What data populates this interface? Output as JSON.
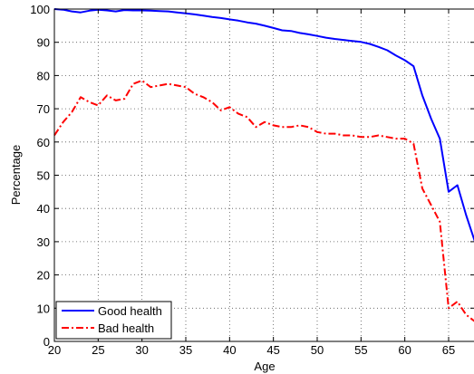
{
  "chart_data": {
    "type": "line",
    "title": "",
    "xlabel": "Age",
    "ylabel": "Percentage",
    "xlim": [
      20,
      68
    ],
    "ylim": [
      0,
      100
    ],
    "xticks": [
      20,
      25,
      30,
      35,
      40,
      45,
      50,
      55,
      60,
      65
    ],
    "yticks": [
      0,
      10,
      20,
      30,
      40,
      50,
      60,
      70,
      80,
      90,
      100
    ],
    "grid": true,
    "grid_style": "dotted",
    "legend_position": "bottom-left",
    "series": [
      {
        "name": "Good health",
        "color": "#0000ff",
        "style": "solid",
        "x": [
          20,
          21,
          22,
          23,
          24,
          25,
          26,
          27,
          28,
          29,
          30,
          31,
          32,
          33,
          34,
          35,
          36,
          37,
          38,
          39,
          40,
          41,
          42,
          43,
          44,
          45,
          46,
          47,
          48,
          49,
          50,
          51,
          52,
          53,
          54,
          55,
          56,
          57,
          58,
          59,
          60,
          61,
          62,
          63,
          64,
          65,
          66,
          67,
          68
        ],
        "y": [
          100,
          99.8,
          99.3,
          99,
          99.5,
          99.8,
          99.6,
          99.3,
          99.7,
          99.6,
          99.6,
          99.5,
          99.4,
          99.3,
          99,
          98.7,
          98.4,
          98,
          97.6,
          97.3,
          96.9,
          96.5,
          96,
          95.6,
          95,
          94.3,
          93.6,
          93.4,
          92.8,
          92.4,
          91.9,
          91.4,
          91,
          90.7,
          90.4,
          90.1,
          89.5,
          88.6,
          87.6,
          86,
          84.6,
          82.8,
          74,
          67,
          61,
          45,
          47,
          38,
          30
        ]
      },
      {
        "name": "Bad health",
        "color": "#ff0000",
        "style": "dash-dot",
        "x": [
          20,
          21,
          22,
          23,
          24,
          25,
          26,
          27,
          28,
          29,
          30,
          31,
          32,
          33,
          34,
          35,
          36,
          37,
          38,
          39,
          40,
          41,
          42,
          43,
          44,
          45,
          46,
          47,
          48,
          49,
          50,
          51,
          52,
          53,
          54,
          55,
          56,
          57,
          58,
          59,
          60,
          61,
          62,
          63,
          64,
          65,
          66,
          67,
          68
        ],
        "y": [
          62,
          66,
          69,
          73.5,
          72,
          71,
          74,
          72.5,
          73,
          77.5,
          78.5,
          76.5,
          77,
          77.5,
          77,
          76.5,
          74.5,
          73.5,
          72,
          69.5,
          70.5,
          68.5,
          67.5,
          64.5,
          66,
          65,
          64.5,
          64.5,
          65,
          64.5,
          63,
          62.5,
          62.5,
          62,
          62,
          61.5,
          61.5,
          62,
          61.5,
          61,
          61,
          59.5,
          46,
          41,
          36,
          10,
          12,
          8,
          6
        ]
      }
    ]
  }
}
